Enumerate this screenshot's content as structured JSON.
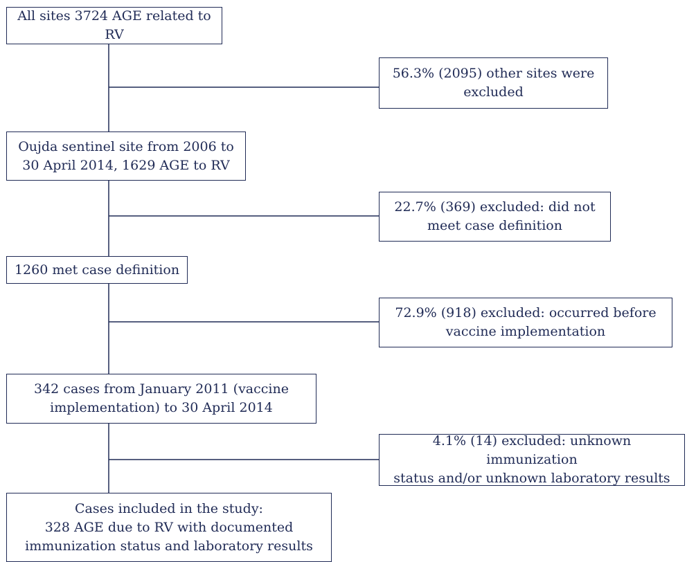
{
  "flow": {
    "nodes": [
      {
        "id": "all-sites",
        "lines": [
          "All sites 3724 AGE related to RV"
        ]
      },
      {
        "id": "oujda",
        "lines": [
          "Oujda sentinel site from 2006 to",
          "30 April 2014, 1629 AGE to RV"
        ]
      },
      {
        "id": "met-def",
        "lines": [
          "1260 met case definition"
        ]
      },
      {
        "id": "cases-2011",
        "lines": [
          "342 cases from January 2011 (vaccine",
          "implementation) to 30 April 2014"
        ]
      },
      {
        "id": "included",
        "lines": [
          "Cases included in the study:",
          "328 AGE due to RV with documented",
          "immunization status and laboratory results"
        ]
      }
    ],
    "exclusions": [
      {
        "id": "excl-other-sites",
        "lines": [
          "56.3% (2095) other sites were",
          "excluded"
        ]
      },
      {
        "id": "excl-case-def",
        "lines": [
          "22.7% (369) excluded: did not",
          "meet case definition"
        ]
      },
      {
        "id": "excl-before-vaccine",
        "lines": [
          "72.9% (918) excluded: occurred before",
          "vaccine implementation"
        ]
      },
      {
        "id": "excl-unknown",
        "lines": [
          "4.1% (14) excluded: unknown immunization",
          "status and/or unknown laboratory results"
        ]
      }
    ]
  }
}
